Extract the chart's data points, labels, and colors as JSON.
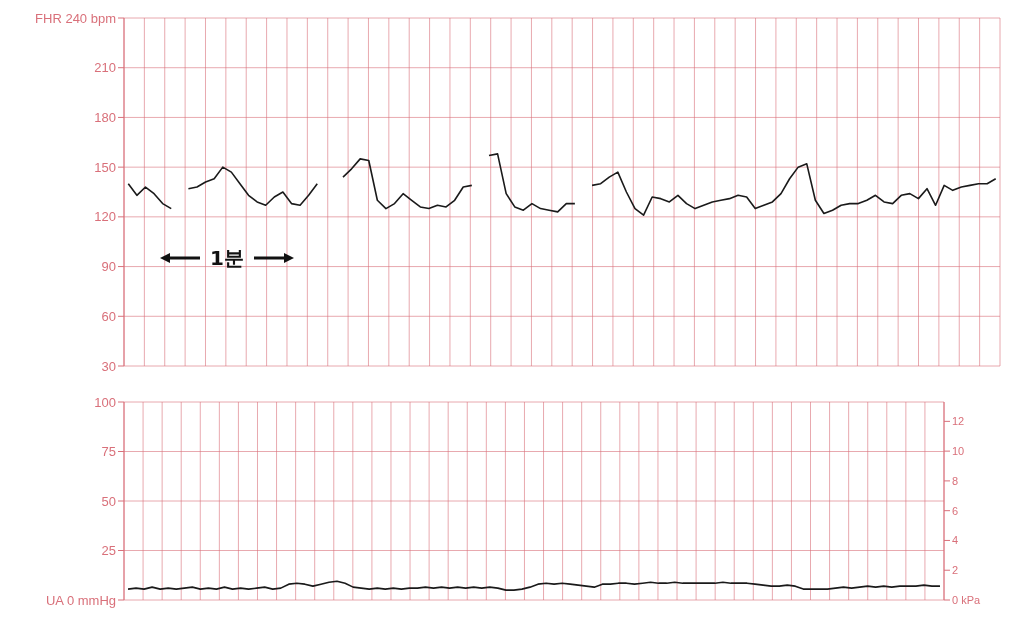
{
  "chart_data": [
    {
      "type": "line",
      "categories": [
        null,
        null,
        null,
        null,
        null,
        null,
        null,
        null,
        null,
        null,
        null,
        null,
        null,
        null,
        null,
        null,
        null,
        null,
        null,
        null,
        null,
        null,
        null,
        null,
        null,
        null,
        null,
        null,
        null,
        null,
        null,
        null,
        null,
        null,
        null,
        null,
        null,
        null,
        null,
        null,
        null,
        null,
        null,
        null,
        null,
        null,
        null,
        null,
        null,
        null,
        null,
        null,
        null,
        null,
        null,
        null,
        null,
        null,
        null,
        null,
        null,
        null,
        null,
        null,
        null,
        null,
        null,
        null,
        null,
        null,
        null,
        null,
        null,
        null,
        null,
        null,
        null,
        null,
        null,
        null,
        null,
        null,
        null,
        null,
        null,
        null,
        null,
        null,
        null,
        null,
        null,
        null,
        null,
        null,
        null,
        null,
        null,
        null,
        null,
        null,
        null,
        null
      ],
      "series": [
        {
          "color": "#1a1a1a",
          "values": [
            140,
            133,
            138,
            134,
            128,
            125,
            null,
            137,
            138,
            141,
            143,
            150,
            147,
            140,
            133,
            129,
            127,
            132,
            135,
            128,
            127,
            133,
            140,
            null,
            null,
            144,
            149,
            155,
            154,
            130,
            125,
            128,
            134,
            130,
            126,
            125,
            127,
            126,
            130,
            138,
            139,
            null,
            157,
            158,
            134,
            126,
            124,
            128,
            125,
            124,
            123,
            128,
            128,
            null,
            139,
            140,
            144,
            147,
            135,
            125,
            121,
            132,
            131,
            129,
            133,
            128,
            125,
            127,
            129,
            130,
            131,
            133,
            132,
            125,
            127,
            129,
            134,
            143,
            150,
            152,
            130,
            122,
            124,
            127,
            128,
            128,
            130,
            133,
            129,
            128,
            133,
            134,
            131,
            137,
            127,
            139,
            136,
            138,
            139,
            140,
            140,
            143
          ]
        }
      ],
      "ylim": [
        30,
        240
      ],
      "yticks": [
        30,
        60,
        90,
        120,
        150,
        180,
        210,
        {
          "value": 240,
          "label": "FHR 240 bpm"
        }
      ],
      "grid": true,
      "tick_labels": "y",
      "annotations": [
        "1분"
      ]
    },
    {
      "type": "line",
      "categories": [
        null,
        null,
        null,
        null,
        null,
        null,
        null,
        null,
        null,
        null,
        null,
        null,
        null,
        null,
        null,
        null,
        null,
        null,
        null,
        null,
        null,
        null,
        null,
        null,
        null,
        null,
        null,
        null,
        null,
        null,
        null,
        null,
        null,
        null,
        null,
        null,
        null,
        null,
        null,
        null,
        null,
        null,
        null,
        null,
        null,
        null,
        null,
        null,
        null,
        null,
        null,
        null,
        null,
        null,
        null,
        null,
        null,
        null,
        null,
        null,
        null,
        null,
        null,
        null,
        null,
        null,
        null,
        null,
        null,
        null,
        null,
        null,
        null,
        null,
        null,
        null,
        null,
        null,
        null,
        null,
        null,
        null,
        null,
        null,
        null,
        null,
        null,
        null,
        null,
        null,
        null,
        null,
        null,
        null,
        null,
        null,
        null,
        null,
        null,
        null,
        null,
        null
      ],
      "series": [
        {
          "color": "#1a1a1a",
          "values": [
            5.5,
            6,
            5.5,
            6.5,
            5.5,
            6,
            5.5,
            6,
            6.5,
            5.5,
            6,
            5.5,
            6.5,
            5.5,
            6,
            5.5,
            6,
            6.5,
            5.5,
            6,
            8,
            8.5,
            8,
            7,
            8,
            9,
            9.5,
            8.5,
            6.5,
            6,
            5.5,
            6,
            5.5,
            6,
            5.5,
            6,
            6,
            6.5,
            6,
            6.5,
            6,
            6.5,
            6,
            6.5,
            6,
            6.5,
            6,
            5,
            5,
            5.5,
            6.5,
            8,
            8.5,
            8,
            8.5,
            8,
            7.5,
            7,
            6.5,
            8,
            8,
            8.5,
            8.5,
            8,
            8.5,
            9,
            8.5,
            8.5,
            9,
            8.5,
            8.5,
            8.5,
            8.5,
            8.5,
            9,
            8.5,
            8.5,
            8.5,
            8,
            7.5,
            7,
            7,
            7.5,
            7,
            5.5,
            5.5,
            5.5,
            5.5,
            6,
            6.5,
            6,
            6.5,
            7,
            6.5,
            7,
            6.5,
            7,
            7,
            7,
            7.5,
            7,
            7
          ]
        }
      ],
      "ylim": [
        0,
        100
      ],
      "yticks": [
        {
          "value": 0,
          "label": "UA 0 mmHg"
        },
        25,
        50,
        75,
        100
      ],
      "y2lim": [
        0,
        13.3
      ],
      "y2ticks": [
        {
          "value": 0,
          "label": "0 kPa"
        },
        2,
        4,
        6,
        8,
        10,
        12
      ],
      "grid": true,
      "tick_labels": "y"
    }
  ]
}
